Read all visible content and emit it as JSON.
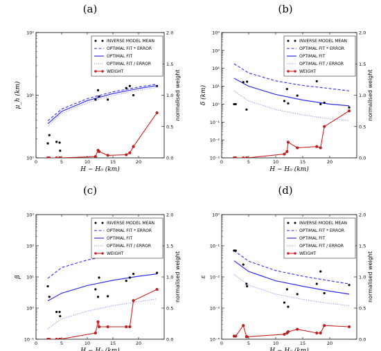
{
  "chart_data": [
    {
      "panel": "(a)",
      "type": "line",
      "xlabel": "H − H₀ (km)",
      "ylabel": "μ_h (km)",
      "ylabel2": "normalised weight",
      "xlim": [
        0,
        25
      ],
      "xticks": [
        0,
        5,
        10,
        15,
        20
      ],
      "yscale": "log",
      "ylim": [
        1,
        100
      ],
      "yticks": [
        {
          "v": 1,
          "t": "10⁰"
        },
        {
          "v": 10,
          "t": "10¹"
        },
        {
          "v": 100,
          "t": "10²"
        }
      ],
      "y2lim": [
        0,
        2
      ],
      "y2ticks": [
        "0.0",
        "0.5",
        "1.0",
        "1.5",
        "2.0"
      ],
      "legend": [
        "INVERSE MODEL MEAN",
        "OPTIMAL FIT * ERROR",
        "OPTIMAL FIT",
        "OPTIMAL FIT / ERROR",
        "WEIGHT"
      ],
      "scatter": {
        "x": [
          2.3,
          2.6,
          4.0,
          4.6,
          4.7,
          11.6,
          12.1,
          12.3,
          14.0,
          17.6,
          18.3,
          19.0,
          23.6
        ],
        "y": [
          1.7,
          2.3,
          1.8,
          1.75,
          1.3,
          8.5,
          12.0,
          9.5,
          8.5,
          13.0,
          14.0,
          10.0,
          14.0
        ]
      },
      "fit_x": [
        2.3,
        5,
        10,
        15,
        20,
        23.6
      ],
      "fit_mul": [
        3.9,
        6.0,
        8.8,
        11.3,
        13.5,
        15.0
      ],
      "fit": [
        3.5,
        5.5,
        8.2,
        10.6,
        12.8,
        14.2
      ],
      "fit_div": [
        3.2,
        5.1,
        7.6,
        9.9,
        12.0,
        13.3
      ],
      "weight": {
        "x": [
          2.3,
          2.6,
          4.0,
          4.6,
          4.7,
          11.6,
          12.1,
          12.3,
          14.0,
          17.6,
          18.3,
          19.0,
          23.6
        ],
        "y": [
          0,
          0,
          0,
          0,
          0,
          0.02,
          0.12,
          0.1,
          0.04,
          0.05,
          0.08,
          0.18,
          0.72
        ]
      }
    },
    {
      "panel": "(b)",
      "type": "line",
      "xlabel": "H − H₀ (km)",
      "ylabel": "δ (km)",
      "ylabel2": "normalised weight",
      "xlim": [
        0,
        25
      ],
      "xticks": [
        0,
        5,
        10,
        15,
        20
      ],
      "yscale": "log",
      "ylim": [
        0.001,
        10000
      ],
      "yticks": [
        {
          "v": 0.001,
          "t": "10⁻³"
        },
        {
          "v": 0.01,
          "t": "10⁻²"
        },
        {
          "v": 0.1,
          "t": "10⁻¹"
        },
        {
          "v": 1,
          "t": "10⁰"
        },
        {
          "v": 10,
          "t": "10¹"
        },
        {
          "v": 100,
          "t": "10²"
        },
        {
          "v": 1000,
          "t": "10³"
        },
        {
          "v": 10000,
          "t": "10⁴"
        }
      ],
      "y2lim": [
        0,
        2
      ],
      "y2ticks": [
        "0.0",
        "0.5",
        "1.0",
        "1.5",
        "2.0"
      ],
      "legend": [
        "INVERSE MODEL MEAN",
        "OPTIMAL FIT * ERROR",
        "OPTIMAL FIT",
        "OPTIMAL FIT / ERROR",
        "WEIGHT"
      ],
      "scatter": {
        "x": [
          2.3,
          2.6,
          4.0,
          4.6,
          4.7,
          11.6,
          12.1,
          12.3,
          14.0,
          17.6,
          18.3,
          19.0,
          23.6
        ],
        "y": [
          1.0,
          1.0,
          17.0,
          0.5,
          18.0,
          1.5,
          7.0,
          1.1,
          3.0,
          19.0,
          1.0,
          1.2,
          0.65
        ]
      },
      "fit_x": [
        2.3,
        5,
        10,
        15,
        20,
        23.6
      ],
      "fit_mul": [
        180,
        55,
        20,
        11,
        7.5,
        5.5
      ],
      "fit": [
        28,
        10,
        3.5,
        1.7,
        1.0,
        0.8
      ],
      "fit_div": [
        5.5,
        1.5,
        0.5,
        0.25,
        0.15,
        0.12
      ],
      "weight": {
        "x": [
          2.3,
          2.6,
          4.0,
          4.6,
          4.7,
          11.6,
          12.1,
          12.3,
          14.0,
          17.6,
          18.3,
          19.0,
          23.6
        ],
        "y": [
          0,
          0,
          0,
          0,
          0,
          0.06,
          0.1,
          0.25,
          0.16,
          0.18,
          0.16,
          0.5,
          0.75
        ]
      }
    },
    {
      "panel": "(c)",
      "type": "line",
      "xlabel": "H − H₀ (km)",
      "ylabel": "β",
      "ylabel2": "normalised weight",
      "xlim": [
        0,
        25
      ],
      "xticks": [
        0,
        5,
        10,
        15,
        20
      ],
      "yscale": "log",
      "ylim": [
        0.1,
        1000
      ],
      "yticks": [
        {
          "v": 0.1,
          "t": "10⁻¹"
        },
        {
          "v": 1,
          "t": "10⁰"
        },
        {
          "v": 10,
          "t": "10¹"
        },
        {
          "v": 100,
          "t": "10²"
        },
        {
          "v": 1000,
          "t": "10³"
        }
      ],
      "y2lim": [
        0,
        2
      ],
      "y2ticks": [
        "0.0",
        "0.5",
        "1.0",
        "1.5",
        "2.0"
      ],
      "legend": [
        "INVERSE MODEL MEAN",
        "OPTIMAL FIT * ERROR",
        "OPTIMAL FIT",
        "OPTIMAL FIT / ERROR",
        "WEIGHT"
      ],
      "scatter": {
        "x": [
          2.3,
          2.6,
          4.0,
          4.6,
          4.7,
          11.6,
          12.1,
          12.3,
          14.0,
          17.6,
          18.3,
          19.0,
          23.6
        ],
        "y": [
          5.0,
          2.3,
          0.75,
          0.75,
          0.55,
          4.0,
          2.3,
          9.5,
          2.4,
          7.5,
          9.5,
          12.5,
          13.5
        ]
      },
      "fit_x": [
        2.3,
        5,
        10,
        15,
        20,
        23.6
      ],
      "fit_mul": [
        9.0,
        20,
        35,
        50,
        65,
        82
      ],
      "fit": [
        1.7,
        3.0,
        5.3,
        7.8,
        10.5,
        12.5
      ],
      "fit_div": [
        0.22,
        0.45,
        0.8,
        1.2,
        1.6,
        2.0
      ],
      "weight": {
        "x": [
          2.3,
          2.6,
          4.0,
          4.6,
          4.7,
          11.6,
          12.1,
          12.3,
          14.0,
          17.6,
          18.3,
          19.0,
          23.6
        ],
        "y": [
          0,
          0,
          0,
          0,
          0,
          0.1,
          0.28,
          0.2,
          0.2,
          0.2,
          0.2,
          0.62,
          0.8
        ]
      }
    },
    {
      "panel": "(d)",
      "type": "line",
      "xlabel": "H − H₀ (km)",
      "ylabel": "ε",
      "ylabel2": "normalised weight",
      "xlim": [
        0,
        25
      ],
      "xticks": [
        0,
        5,
        10,
        15,
        20
      ],
      "yscale": "log",
      "ylim": [
        0.0001,
        1
      ],
      "yticks": [
        {
          "v": 0.0001,
          "t": "10⁻⁴"
        },
        {
          "v": 0.001,
          "t": "10⁻³"
        },
        {
          "v": 0.01,
          "t": "10⁻²"
        },
        {
          "v": 0.1,
          "t": "10⁻¹"
        },
        {
          "v": 1,
          "t": "10⁰"
        }
      ],
      "y2lim": [
        0,
        2
      ],
      "y2ticks": [
        "0.0",
        "0.5",
        "1.0",
        "1.5",
        "2.0"
      ],
      "legend": [
        "INVERSE MODEL MEAN",
        "OPTIMAL FIT * ERROR",
        "OPTIMAL FIT",
        "OPTIMAL FIT / ERROR",
        "WEIGHT"
      ],
      "scatter": {
        "x": [
          2.3,
          2.6,
          4.0,
          4.6,
          4.7,
          11.6,
          12.1,
          12.3,
          14.0,
          17.6,
          18.3,
          19.0,
          23.6
        ],
        "y": [
          0.07,
          0.07,
          0.025,
          0.006,
          0.005,
          0.0015,
          0.004,
          0.0011,
          0.0028,
          0.006,
          0.015,
          0.003,
          0.0055
        ]
      },
      "fit_x": [
        2.3,
        5,
        10,
        15,
        20,
        23.6
      ],
      "fit_mul": [
        0.07,
        0.032,
        0.016,
        0.0105,
        0.0075,
        0.006
      ],
      "fit": [
        0.033,
        0.015,
        0.0075,
        0.005,
        0.0035,
        0.0028
      ],
      "fit_div": [
        0.012,
        0.0055,
        0.0028,
        0.0019,
        0.0014,
        0.0012
      ],
      "weight": {
        "x": [
          2.3,
          2.6,
          4.0,
          4.6,
          4.7,
          11.6,
          12.1,
          12.3,
          14.0,
          17.6,
          18.3,
          19.0,
          23.6
        ],
        "y": [
          0.05,
          0.05,
          0.22,
          0.04,
          0.04,
          0.08,
          0.1,
          0.12,
          0.16,
          0.1,
          0.1,
          0.22,
          0.2
        ]
      }
    }
  ],
  "colors": {
    "fit": "#2e2ef0",
    "fit_div": "#8c8cf5",
    "weight": "#cc2020",
    "points": "#000000"
  }
}
